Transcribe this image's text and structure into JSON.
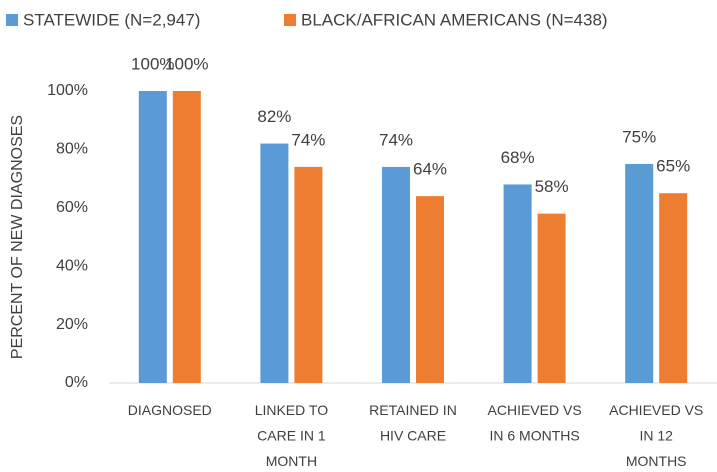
{
  "chart_data": {
    "type": "bar",
    "y_label": "PERCENT OF NEW DIAGNOSES",
    "categories": [
      "DIAGNOSED",
      "LINKED TO CARE IN 1 MONTH",
      "RETAINED IN HIV CARE",
      "ACHIEVED VS IN 6 MONTHS",
      "ACHIEVED VS IN 12 MONTHS"
    ],
    "series": [
      {
        "name": "STATEWIDE (N=2,947)",
        "color": "#5b9bd5",
        "values": [
          100,
          82,
          74,
          68,
          75
        ],
        "value_labels": [
          "100%",
          "82%",
          "74%",
          "68%",
          "75%"
        ]
      },
      {
        "name": "BLACK/AFRICAN AMERICANS (N=438)",
        "color": "#ed7d31",
        "values": [
          100,
          74,
          64,
          58,
          65
        ],
        "value_labels": [
          "100%",
          "74%",
          "64%",
          "58%",
          "65%"
        ]
      }
    ],
    "ylim": [
      0,
      100
    ],
    "yticks": [
      {
        "value": 0,
        "label": "0%"
      },
      {
        "value": 20,
        "label": "20%"
      },
      {
        "value": 40,
        "label": "40%"
      },
      {
        "value": 60,
        "label": "60%"
      },
      {
        "value": 80,
        "label": "80%"
      },
      {
        "value": 100,
        "label": "100%"
      }
    ],
    "grid": false,
    "legend": "top"
  }
}
